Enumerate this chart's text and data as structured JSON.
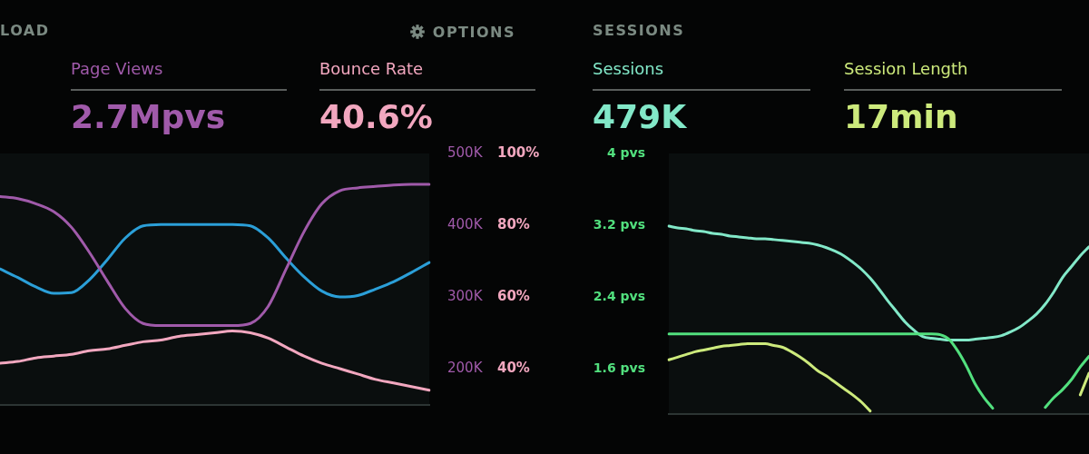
{
  "chart_data": [
    {
      "type": "line",
      "title": "LOAD",
      "categories": [
        null,
        null,
        null,
        null,
        null,
        null,
        null,
        null,
        null,
        null,
        null,
        null,
        null,
        null,
        null,
        null,
        null,
        null,
        null,
        null,
        null,
        null,
        null,
        null,
        null
      ],
      "series": [
        {
          "name": "Page Views",
          "color": "#a05aaa",
          "values": [
            440000,
            437000,
            430000,
            419000,
            397000,
            362000,
            322000,
            284000,
            263000,
            260000,
            260000,
            260000,
            260000,
            260000,
            263000,
            287000,
            339000,
            391000,
            430000,
            448000,
            452000,
            454000,
            456000,
            457000,
            457000
          ]
        },
        {
          "name": "Bounce Rate",
          "color": "#f2a7bf",
          "axis": "y2",
          "values": [
            41.5,
            42,
            43,
            43.5,
            44,
            45,
            45.5,
            46.5,
            47.5,
            48,
            49,
            49.5,
            50,
            50.5,
            50,
            48.5,
            46,
            43.5,
            41.5,
            40,
            38.5,
            37,
            36,
            35,
            34
          ]
        },
        {
          "color": "#2b9fd8",
          "values": [
            339000,
            327000,
            314000,
            305000,
            306000,
            324000,
            352000,
            382000,
            399000,
            401000,
            401000,
            401000,
            401000,
            401000,
            399000,
            382000,
            354000,
            328000,
            308000,
            300000,
            302000,
            311000,
            321000,
            334000,
            348000
          ]
        }
      ],
      "ylim": [
        150000,
        500000
      ],
      "yticks": [
        {
          "value": 200000,
          "label": "200K"
        },
        {
          "value": 300000,
          "label": "300K"
        },
        {
          "value": 400000,
          "label": "400K"
        },
        {
          "value": 500000,
          "label": "500K"
        }
      ],
      "y2lim": [
        30,
        100
      ],
      "y2ticks": [
        {
          "value": 40,
          "label": "40%"
        },
        {
          "value": 60,
          "label": "60%"
        },
        {
          "value": 80,
          "label": "80%"
        },
        {
          "value": 100,
          "label": "100%"
        }
      ],
      "legend": "top",
      "annotations": [
        "2.7Mpvs",
        "40.6%",
        "OPTIONS"
      ]
    },
    {
      "type": "line",
      "title": "SESSIONS",
      "categories": [
        null,
        null,
        null,
        null,
        null,
        null,
        null,
        null,
        null,
        null,
        null,
        null,
        null,
        null,
        null,
        null,
        null,
        null,
        null,
        null,
        null,
        null,
        null,
        null,
        null,
        null,
        null,
        null,
        null,
        null,
        null,
        null,
        null,
        null,
        null,
        null,
        null,
        null,
        null,
        null,
        null,
        null,
        null,
        null,
        null,
        null,
        null,
        null,
        null
      ],
      "series": [
        {
          "color": "#52e07e",
          "values": [
            1.99,
            1.99,
            1.99,
            1.99,
            1.99,
            1.99,
            1.99,
            1.99,
            1.99,
            1.99,
            1.99,
            1.99,
            1.99,
            1.99,
            1.99,
            1.99,
            1.99,
            1.99,
            1.99,
            1.99,
            1.99,
            1.99,
            1.99,
            1.99,
            1.99,
            1.99,
            1.99,
            1.99,
            1.99,
            1.99,
            1.99,
            1.98,
            1.93,
            1.8,
            1.63,
            1.43,
            1.28,
            1.16,
            null,
            null,
            null,
            null,
            null,
            1.17,
            1.28,
            1.37,
            1.48,
            1.62,
            1.74
          ]
        },
        {
          "name": "Sessions",
          "color": "#82e8c8",
          "values": [
            3.19,
            3.17,
            3.16,
            3.14,
            3.13,
            3.11,
            3.1,
            3.08,
            3.07,
            3.06,
            3.05,
            3.05,
            3.04,
            3.03,
            3.02,
            3.01,
            3.0,
            2.98,
            2.95,
            2.91,
            2.86,
            2.79,
            2.71,
            2.61,
            2.49,
            2.36,
            2.24,
            2.12,
            2.03,
            1.96,
            1.94,
            1.93,
            1.92,
            1.92,
            1.92,
            1.93,
            1.94,
            1.95,
            1.97,
            2.01,
            2.06,
            2.13,
            2.21,
            2.32,
            2.46,
            2.62,
            2.74,
            2.86,
            2.96
          ]
        },
        {
          "name": "Session Length",
          "color": "#cdea7c",
          "values": [
            1.7,
            1.73,
            1.76,
            1.79,
            1.81,
            1.83,
            1.85,
            1.86,
            1.87,
            1.88,
            1.88,
            1.88,
            1.86,
            1.84,
            1.79,
            1.73,
            1.66,
            1.58,
            1.52,
            1.45,
            1.38,
            1.31,
            1.23,
            1.13,
            null,
            null,
            null,
            null,
            null,
            null,
            null,
            null,
            null,
            null,
            null,
            null,
            null,
            null,
            null,
            null,
            null,
            null,
            null,
            null,
            null,
            null,
            null,
            1.31,
            1.55
          ]
        }
      ],
      "ylim": [
        1.1,
        4
      ],
      "yticks": [
        {
          "value": 1.6,
          "label": "1.6 pvs"
        },
        {
          "value": 2.4,
          "label": "2.4 pvs"
        },
        {
          "value": 3.2,
          "label": "3.2 pvs"
        },
        {
          "value": 4,
          "label": "4 pvs"
        }
      ],
      "legend": "top",
      "annotations": [
        "479K",
        "17min"
      ]
    }
  ]
}
